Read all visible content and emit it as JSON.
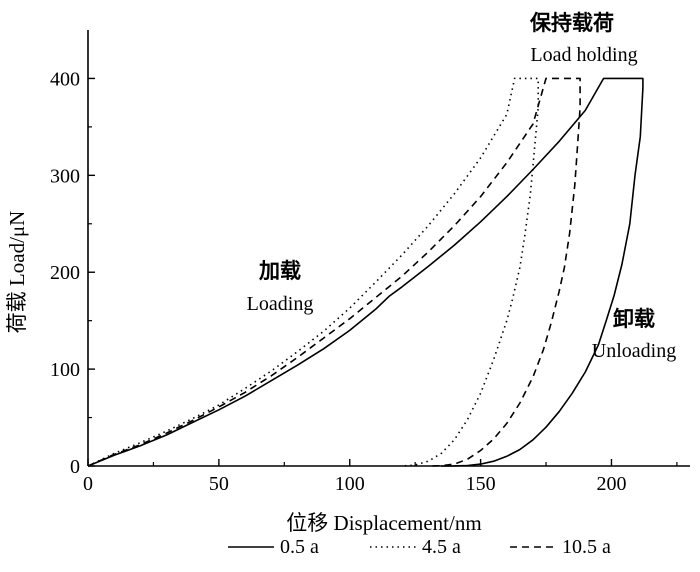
{
  "chart_data": {
    "type": "line",
    "xlabel": "位移 Displacement/nm",
    "ylabel": "荷载 Load/μN",
    "xlim": [
      0,
      230
    ],
    "ylim": [
      0,
      450
    ],
    "xticks": [
      0,
      50,
      100,
      150,
      200
    ],
    "yticks": [
      0,
      100,
      200,
      300,
      400
    ],
    "grid": false,
    "legend_position": "bottom",
    "annotations": {
      "holding": {
        "cn": "保持载荷",
        "en": "Load holding"
      },
      "loading": {
        "cn": "加载",
        "en": "Loading"
      },
      "unloading": {
        "cn": "卸载",
        "en": "Unloading"
      }
    },
    "series": [
      {
        "name": "0.5 a",
        "dash": "solid",
        "x": [
          0,
          10,
          20,
          30,
          40,
          50,
          60,
          70,
          80,
          90,
          100,
          110,
          115,
          120,
          130,
          140,
          150,
          160,
          170,
          180,
          190,
          197,
          212,
          212,
          211,
          209,
          207,
          204,
          201,
          198,
          195,
          190,
          185,
          180,
          175,
          170,
          165,
          160,
          155,
          150,
          145,
          140,
          135
        ],
        "y": [
          0,
          11,
          21,
          32,
          45,
          58,
          72,
          88,
          104,
          121,
          140,
          162,
          175,
          185,
          206,
          228,
          252,
          278,
          306,
          335,
          367,
          400,
          400,
          390,
          340,
          300,
          250,
          208,
          176,
          150,
          125,
          97,
          75,
          56,
          40,
          27,
          17,
          10,
          5,
          2,
          0.5,
          0.1,
          0
        ]
      },
      {
        "name": "4.5 a",
        "dash": "dotted",
        "x": [
          0,
          10,
          20,
          30,
          40,
          50,
          60,
          70,
          80,
          90,
          100,
          110,
          120,
          130,
          140,
          150,
          160,
          163,
          172,
          172,
          171,
          170,
          169,
          167,
          165,
          162,
          160,
          155,
          150,
          145,
          140,
          135,
          130,
          125,
          120
        ],
        "y": [
          0,
          13,
          24,
          36,
          49,
          63,
          80,
          98,
          118,
          139,
          163,
          190,
          218,
          248,
          281,
          318,
          363,
          400,
          400,
          370,
          340,
          310,
          280,
          240,
          205,
          170,
          150,
          110,
          75,
          48,
          27,
          13,
          5,
          1,
          0
        ]
      },
      {
        "name": "10.5 a",
        "dash": "dashed",
        "x": [
          0,
          10,
          20,
          30,
          40,
          50,
          60,
          70,
          80,
          90,
          100,
          110,
          120,
          130,
          140,
          150,
          160,
          170,
          175,
          188,
          188,
          187,
          186,
          184,
          182,
          180,
          177,
          174,
          170,
          165,
          160,
          155,
          150,
          145,
          140,
          135,
          130
        ],
        "y": [
          0,
          12,
          22,
          34,
          47,
          61,
          76,
          93,
          112,
          132,
          152,
          174,
          196,
          221,
          248,
          278,
          313,
          353,
          400,
          400,
          370,
          330,
          290,
          240,
          205,
          180,
          148,
          120,
          92,
          65,
          44,
          28,
          16,
          7,
          2,
          0.3,
          0
        ]
      }
    ]
  }
}
